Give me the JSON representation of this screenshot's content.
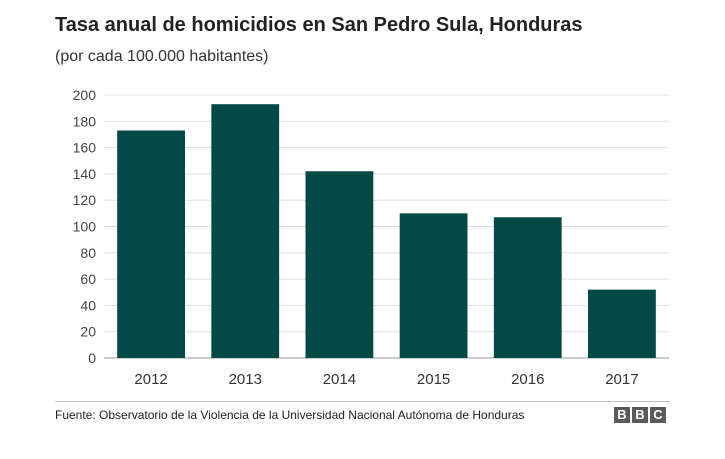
{
  "chart_data": {
    "type": "bar",
    "title": "Tasa anual de homicidios en San Pedro Sula, Honduras",
    "subtitle": "(por cada 100.000 habitantes)",
    "categories": [
      "2012",
      "2013",
      "2014",
      "2015",
      "2016",
      "2017"
    ],
    "values": [
      173,
      193,
      142,
      110,
      107,
      52
    ],
    "xlabel": "",
    "ylabel": "",
    "ylim": [
      0,
      200
    ],
    "yticks": [
      "0",
      "20",
      "40",
      "60",
      "80",
      "100",
      "120",
      "140",
      "160",
      "180",
      "200"
    ],
    "grid": true,
    "bar_color": "#034a47",
    "grid_color": "#dddddd"
  },
  "footer": {
    "source": "Fuente: Observatorio de la Violencia de la Universidad Nacional Autónoma de Honduras",
    "logo": [
      "B",
      "B",
      "C"
    ]
  }
}
